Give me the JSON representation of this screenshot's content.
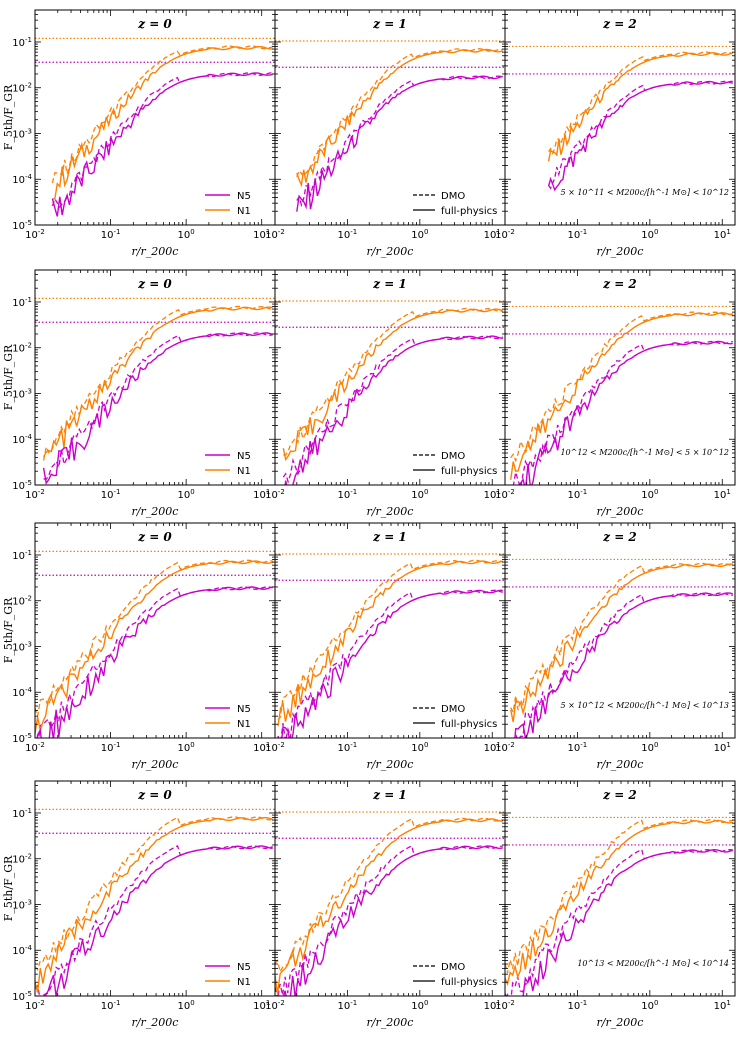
{
  "colors": {
    "n5": "#cc00cc",
    "n1": "#ff8000",
    "axis": "#000000"
  },
  "chart_data": {
    "type": "line",
    "xscale": "log",
    "yscale": "log",
    "xlim": [
      0.01,
      15
    ],
    "ylim": [
      1e-05,
      0.5
    ],
    "xlabel": "r/r_200c",
    "ylabel": "F_5th/F_GR",
    "x_tick_labels": [
      "10-2",
      "10-1",
      "100",
      "101"
    ],
    "y_tick_labels": [
      "10-5",
      "10-4",
      "10-3",
      "10-2",
      "10-1"
    ],
    "legend_models": [
      {
        "key": "n5",
        "label": "N5"
      },
      {
        "key": "n1",
        "label": "N1"
      }
    ],
    "legend_types": [
      {
        "key": "dmo",
        "label": "DMO",
        "style": "dashed"
      },
      {
        "key": "fp",
        "label": "full-physics",
        "style": "solid"
      }
    ],
    "columns": [
      {
        "label": "z = 0",
        "n5_plateau": 0.036,
        "n1_plateau": 0.12
      },
      {
        "label": "z = 1",
        "n5_plateau": 0.028,
        "n1_plateau": 0.105
      },
      {
        "label": "z = 2",
        "n5_plateau": 0.02,
        "n1_plateau": 0.08
      }
    ],
    "rows": [
      {
        "mass_label": "5 × 10^11 < M200c/[h^-1 M⊙] < 10^12",
        "x_start": [
          0.017,
          0.02,
          0.04
        ],
        "n5_fp_max": [
          0.02,
          0.017,
          0.013
        ],
        "n1_fp_max": [
          0.075,
          0.065,
          0.055
        ],
        "dmo_offset": 1.35
      },
      {
        "mass_label": "10^12 < M200c/[h^-1 M⊙] < 5 × 10^12",
        "x_start": [
          0.013,
          0.013,
          0.012
        ],
        "n5_fp_max": [
          0.02,
          0.017,
          0.013
        ],
        "n1_fp_max": [
          0.073,
          0.066,
          0.055
        ],
        "dmo_offset": 1.45
      },
      {
        "mass_label": "5 × 10^12 < M200c/[h^-1 M⊙] < 10^13",
        "x_start": [
          0.01,
          0.011,
          0.012
        ],
        "n5_fp_max": [
          0.019,
          0.016,
          0.014
        ],
        "n1_fp_max": [
          0.07,
          0.07,
          0.06
        ],
        "dmo_offset": 1.55
      },
      {
        "mass_label": "10^13 < M200c/[h^-1 M⊙] < 10^14",
        "x_start": [
          0.01,
          0.01,
          0.01
        ],
        "n5_fp_max": [
          0.018,
          0.018,
          0.015
        ],
        "n1_fp_max": [
          0.075,
          0.07,
          0.065
        ],
        "dmo_offset": 1.7
      }
    ]
  }
}
